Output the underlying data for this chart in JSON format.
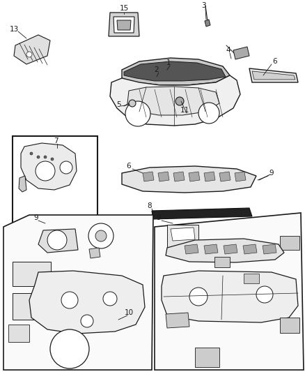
{
  "bg_color": "#ffffff",
  "line_color": "#1a1a1a",
  "figsize": [
    4.38,
    5.33
  ],
  "dpi": 100,
  "label_fontsize": 7.5
}
